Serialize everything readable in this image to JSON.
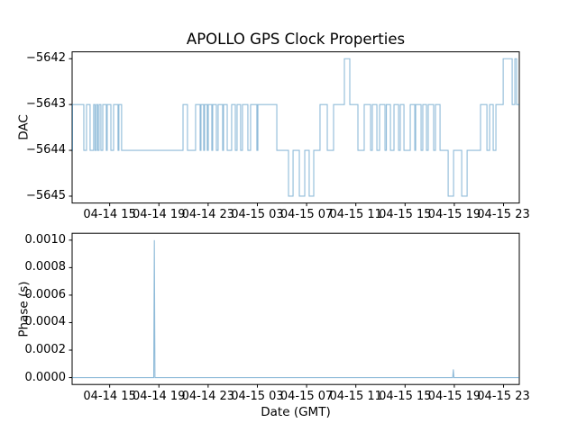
{
  "figure": {
    "title": "APOLLO GPS Clock Properties",
    "background": "#ffffff"
  },
  "colors": {
    "line": "#1f77b4",
    "line_opacity": 0.5,
    "spine": "#000000",
    "text": "#000000"
  },
  "chart_data": [
    {
      "type": "line",
      "subplot": "dac",
      "title": "APOLLO GPS Clock Properties",
      "ylabel": "DAC",
      "draw": "steps-post",
      "grid": false,
      "legend": null,
      "x_unit": "hours since 04-14 00:00 GMT",
      "xlim": [
        11.95,
        48.28
      ],
      "ylim": [
        -5645.15,
        -5641.85
      ],
      "xticks": [
        15,
        19,
        23,
        27,
        31,
        35,
        39,
        43,
        47
      ],
      "xticklabels": [
        "04-14 15",
        "04-14 19",
        "04-14 23",
        "04-15 03",
        "04-15 07",
        "04-15 11",
        "04-15 15",
        "04-15 19",
        "04-15 23"
      ],
      "yticks": [
        {
          "v": -5642,
          "label": "−5642"
        },
        {
          "v": -5643,
          "label": "−5643"
        },
        {
          "v": -5644,
          "label": "−5644"
        },
        {
          "v": -5645,
          "label": "−5645"
        }
      ],
      "steps": [
        [
          11.95,
          -5644
        ],
        [
          11.98,
          -5643
        ],
        [
          12.9,
          -5644
        ],
        [
          13.12,
          -5643
        ],
        [
          13.41,
          -5644
        ],
        [
          13.7,
          -5643
        ],
        [
          13.81,
          -5644
        ],
        [
          13.92,
          -5643
        ],
        [
          14.03,
          -5644
        ],
        [
          14.14,
          -5643
        ],
        [
          14.29,
          -5644
        ],
        [
          14.44,
          -5643
        ],
        [
          14.73,
          -5644
        ],
        [
          14.8,
          -5643
        ],
        [
          15.1,
          -5644
        ],
        [
          15.32,
          -5643
        ],
        [
          15.68,
          -5644
        ],
        [
          15.75,
          -5643
        ],
        [
          15.97,
          -5644
        ],
        [
          20.96,
          -5643
        ],
        [
          21.32,
          -5644
        ],
        [
          21.98,
          -5643
        ],
        [
          22.35,
          -5644
        ],
        [
          22.42,
          -5643
        ],
        [
          22.64,
          -5644
        ],
        [
          22.71,
          -5643
        ],
        [
          22.93,
          -5644
        ],
        [
          23.01,
          -5643
        ],
        [
          23.3,
          -5644
        ],
        [
          23.37,
          -5643
        ],
        [
          23.67,
          -5644
        ],
        [
          23.81,
          -5643
        ],
        [
          24.18,
          -5644
        ],
        [
          24.25,
          -5643
        ],
        [
          24.55,
          -5644
        ],
        [
          24.91,
          -5643
        ],
        [
          25.21,
          -5644
        ],
        [
          25.35,
          -5643
        ],
        [
          25.64,
          -5644
        ],
        [
          25.79,
          -5643
        ],
        [
          26.23,
          -5644
        ],
        [
          26.45,
          -5643
        ],
        [
          26.96,
          -5644
        ],
        [
          27.04,
          -5643
        ],
        [
          28.58,
          -5644
        ],
        [
          29.53,
          -5645
        ],
        [
          29.9,
          -5644
        ],
        [
          30.41,
          -5645
        ],
        [
          30.85,
          -5644
        ],
        [
          31.21,
          -5645
        ],
        [
          31.58,
          -5644
        ],
        [
          32.09,
          -5643
        ],
        [
          32.68,
          -5644
        ],
        [
          33.19,
          -5643
        ],
        [
          34.07,
          -5642
        ],
        [
          34.51,
          -5643
        ],
        [
          35.17,
          -5644
        ],
        [
          35.68,
          -5643
        ],
        [
          36.2,
          -5644
        ],
        [
          36.34,
          -5643
        ],
        [
          36.71,
          -5644
        ],
        [
          36.93,
          -5643
        ],
        [
          37.37,
          -5644
        ],
        [
          37.48,
          -5643
        ],
        [
          37.81,
          -5644
        ],
        [
          38.1,
          -5643
        ],
        [
          38.47,
          -5644
        ],
        [
          38.61,
          -5643
        ],
        [
          38.91,
          -5644
        ],
        [
          39.42,
          -5643
        ],
        [
          39.79,
          -5644
        ],
        [
          39.86,
          -5643
        ],
        [
          40.3,
          -5644
        ],
        [
          40.44,
          -5643
        ],
        [
          40.74,
          -5644
        ],
        [
          40.88,
          -5643
        ],
        [
          41.32,
          -5644
        ],
        [
          41.47,
          -5643
        ],
        [
          41.84,
          -5644
        ],
        [
          42.5,
          -5645
        ],
        [
          42.94,
          -5644
        ],
        [
          43.6,
          -5645
        ],
        [
          44.04,
          -5644
        ],
        [
          45.13,
          -5643
        ],
        [
          45.65,
          -5644
        ],
        [
          45.87,
          -5643
        ],
        [
          46.16,
          -5644
        ],
        [
          46.38,
          -5643
        ],
        [
          46.97,
          -5642
        ],
        [
          47.7,
          -5643
        ],
        [
          47.92,
          -5642
        ],
        [
          48.06,
          -5643
        ],
        [
          48.28,
          -5643
        ]
      ]
    },
    {
      "type": "line",
      "subplot": "phase",
      "ylabel": "Phase (s)",
      "xlabel": "Date (GMT)",
      "draw": "linear",
      "grid": false,
      "legend": null,
      "x_unit": "hours since 04-14 00:00 GMT",
      "xlim": [
        11.95,
        48.28
      ],
      "ylim": [
        -5e-05,
        0.00105
      ],
      "xticks": [
        15,
        19,
        23,
        27,
        31,
        35,
        39,
        43,
        47
      ],
      "xticklabels": [
        "04-14 15",
        "04-14 19",
        "04-14 23",
        "04-15 03",
        "04-15 07",
        "04-15 11",
        "04-15 15",
        "04-15 19",
        "04-15 23"
      ],
      "yticks": [
        {
          "v": 0.0,
          "label": "0.0000"
        },
        {
          "v": 0.0002,
          "label": "0.0002"
        },
        {
          "v": 0.0004,
          "label": "0.0004"
        },
        {
          "v": 0.0006,
          "label": "0.0006"
        },
        {
          "v": 0.0008,
          "label": "0.0008"
        },
        {
          "v": 0.001,
          "label": "0.0010"
        }
      ],
      "points": [
        [
          11.95,
          0
        ],
        [
          18.58,
          0
        ],
        [
          18.63,
          0.001
        ],
        [
          18.68,
          0
        ],
        [
          42.87,
          0
        ],
        [
          42.92,
          6e-05
        ],
        [
          42.97,
          0
        ],
        [
          48.28,
          0
        ]
      ]
    }
  ]
}
